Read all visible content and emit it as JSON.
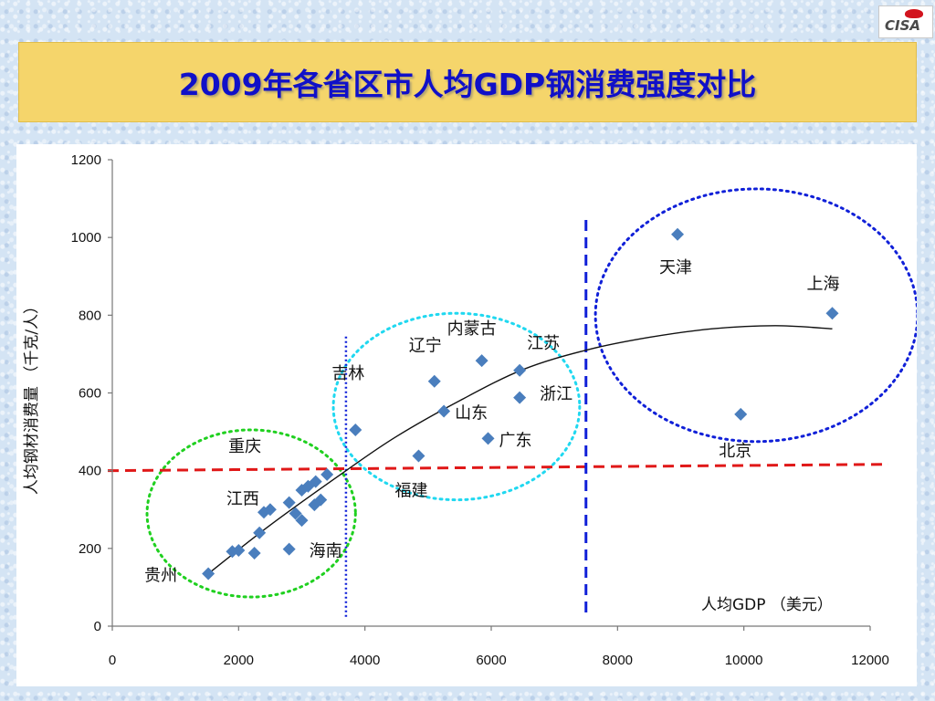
{
  "logo": {
    "text": "CISA"
  },
  "title": "2009年各省区市人均GDP钢消费强度对比",
  "chart_data": {
    "type": "scatter",
    "xlabel": "人均GDP （美元）",
    "ylabel": "人均钢材消费量 （千克/人）",
    "xlim": [
      0,
      12000
    ],
    "ylim": [
      0,
      1200
    ],
    "xticks": [
      0,
      2000,
      4000,
      6000,
      8000,
      10000,
      12000
    ],
    "yticks": [
      0,
      200,
      400,
      600,
      800,
      1000,
      1200
    ],
    "x_tick_labels": [
      "0",
      "2000",
      "4000",
      "6000",
      "8000",
      "10000",
      "12000"
    ],
    "y_tick_labels": [
      "0",
      "200",
      "400",
      "600",
      "800",
      "1000",
      "1200"
    ],
    "grid": false,
    "points": [
      {
        "label": "贵州",
        "x": 1520,
        "y": 135
      },
      {
        "x": 1900,
        "y": 192
      },
      {
        "x": 2000,
        "y": 195
      },
      {
        "x": 2250,
        "y": 188
      },
      {
        "x": 2330,
        "y": 240
      },
      {
        "x": 2400,
        "y": 293
      },
      {
        "label": "江西",
        "x": 2500,
        "y": 300
      },
      {
        "x": 2800,
        "y": 318
      },
      {
        "label": "海南",
        "x": 2800,
        "y": 198
      },
      {
        "x": 2900,
        "y": 290
      },
      {
        "x": 3000,
        "y": 272
      },
      {
        "x": 3000,
        "y": 350
      },
      {
        "x": 3100,
        "y": 360
      },
      {
        "x": 3200,
        "y": 312
      },
      {
        "x": 3220,
        "y": 372
      },
      {
        "x": 3300,
        "y": 325
      },
      {
        "label": "重庆",
        "x": 3400,
        "y": 390
      },
      {
        "label": "吉林",
        "x": 3850,
        "y": 505
      },
      {
        "label": "福建",
        "x": 4850,
        "y": 438
      },
      {
        "label": "辽宁",
        "x": 5100,
        "y": 630
      },
      {
        "label": "山东",
        "x": 5250,
        "y": 553
      },
      {
        "label": "内蒙古",
        "x": 5850,
        "y": 683
      },
      {
        "label": "广东",
        "x": 5950,
        "y": 483
      },
      {
        "label": "浙江",
        "x": 6450,
        "y": 588
      },
      {
        "label": "江苏",
        "x": 6450,
        "y": 658
      },
      {
        "label": "天津",
        "x": 8950,
        "y": 1008
      },
      {
        "label": "北京",
        "x": 9950,
        "y": 545
      },
      {
        "label": "上海",
        "x": 11400,
        "y": 805
      }
    ],
    "trendline": [
      {
        "x": 1520,
        "y": 135
      },
      {
        "x": 2500,
        "y": 260
      },
      {
        "x": 3700,
        "y": 400
      },
      {
        "x": 4500,
        "y": 488
      },
      {
        "x": 5500,
        "y": 580
      },
      {
        "x": 6500,
        "y": 660
      },
      {
        "x": 7500,
        "y": 710
      },
      {
        "x": 8500,
        "y": 743
      },
      {
        "x": 9500,
        "y": 765
      },
      {
        "x": 10500,
        "y": 773
      },
      {
        "x": 11400,
        "y": 765
      }
    ],
    "reference_lines": [
      {
        "orientation": "horizontal",
        "y": 400,
        "color": "#e01818",
        "style": "dashed"
      },
      {
        "orientation": "vertical",
        "x": 3700,
        "color": "#1020d8",
        "style": "dotted"
      },
      {
        "orientation": "vertical",
        "x": 7500,
        "color": "#1020d8",
        "style": "dashed"
      }
    ],
    "groups": [
      {
        "color": "#20d020",
        "cx": 2200,
        "cy": 290,
        "rx": 1650,
        "ry": 215
      },
      {
        "color": "#20d8f0",
        "cx": 5450,
        "cy": 565,
        "rx": 1950,
        "ry": 240
      },
      {
        "color": "#1020d8",
        "cx": 10200,
        "cy": 800,
        "rx": 2550,
        "ry": 325
      }
    ],
    "marker_color": "#4a7ebd",
    "trend_color": "#111111"
  }
}
